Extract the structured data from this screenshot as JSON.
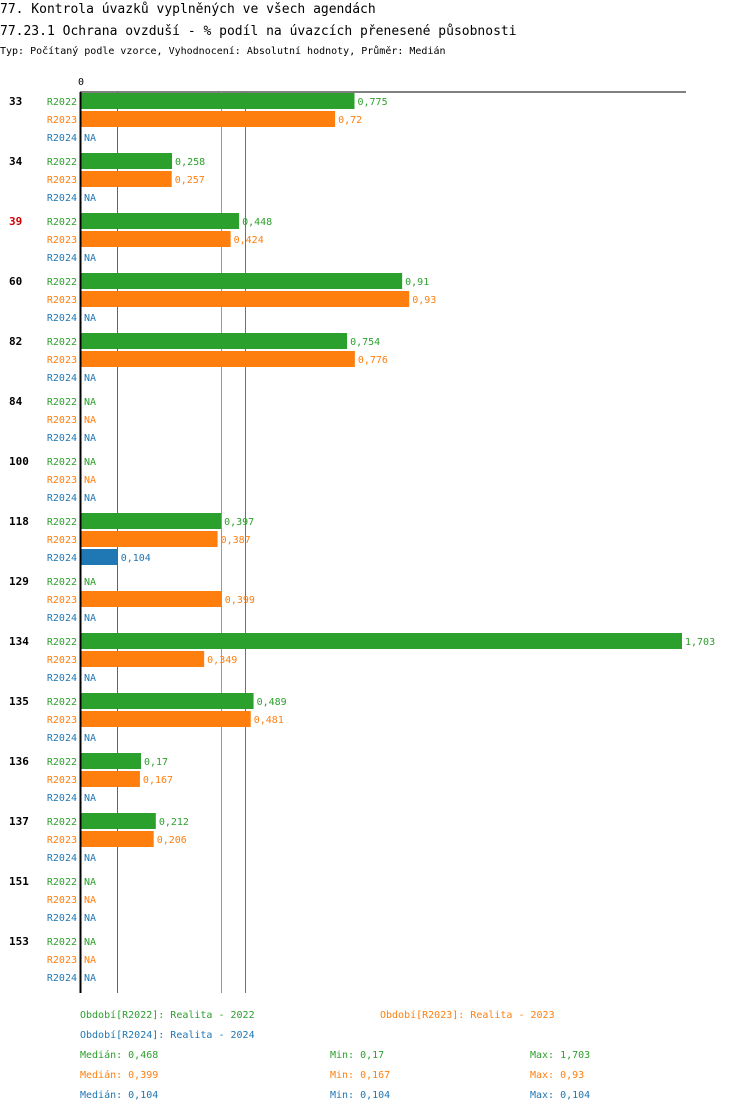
{
  "chart_data": {
    "type": "bar",
    "orientation": "horizontal",
    "title": "77. Kontrola úvazků vyplněných ve všech agendách",
    "subtitle": "77.23.1 Ochrana ovzduší - % podíl na úvazcích přenesené působnosti",
    "description": "Typ: Počítaný podle vzorce, Vyhodnocení: Absolutní hodnoty, Průměr: Medián",
    "axis_zero_label": "0",
    "xlim": [
      0,
      1.703
    ],
    "na_label": "NA",
    "colors": {
      "R2022": "#2ca02c",
      "R2023": "#ff7f0e",
      "R2024": "#1f77b4"
    },
    "highlight_color": "#cc0000",
    "series_names": [
      "R2022",
      "R2023",
      "R2024"
    ],
    "categories": [
      {
        "label": "33",
        "highlight": false,
        "values": [
          0.775,
          0.72,
          null
        ],
        "labels": [
          "0,775",
          "0,72",
          "NA"
        ]
      },
      {
        "label": "34",
        "highlight": false,
        "values": [
          0.258,
          0.257,
          null
        ],
        "labels": [
          "0,258",
          "0,257",
          "NA"
        ]
      },
      {
        "label": "39",
        "highlight": true,
        "values": [
          0.448,
          0.424,
          null
        ],
        "labels": [
          "0,448",
          "0,424",
          "NA"
        ]
      },
      {
        "label": "60",
        "highlight": false,
        "values": [
          0.91,
          0.93,
          null
        ],
        "labels": [
          "0,91",
          "0,93",
          "NA"
        ]
      },
      {
        "label": "82",
        "highlight": false,
        "values": [
          0.754,
          0.776,
          null
        ],
        "labels": [
          "0,754",
          "0,776",
          "NA"
        ]
      },
      {
        "label": "84",
        "highlight": false,
        "values": [
          null,
          null,
          null
        ],
        "labels": [
          "NA",
          "NA",
          "NA"
        ]
      },
      {
        "label": "100",
        "highlight": false,
        "values": [
          null,
          null,
          null
        ],
        "labels": [
          "NA",
          "NA",
          "NA"
        ]
      },
      {
        "label": "118",
        "highlight": false,
        "values": [
          0.397,
          0.387,
          0.104
        ],
        "labels": [
          "0,397",
          "0,387",
          "0,104"
        ]
      },
      {
        "label": "129",
        "highlight": false,
        "values": [
          null,
          0.399,
          null
        ],
        "labels": [
          "NA",
          "0,399",
          "NA"
        ]
      },
      {
        "label": "134",
        "highlight": false,
        "values": [
          1.703,
          0.349,
          null
        ],
        "labels": [
          "1,703",
          "0,349",
          "NA"
        ]
      },
      {
        "label": "135",
        "highlight": false,
        "values": [
          0.489,
          0.481,
          null
        ],
        "labels": [
          "0,489",
          "0,481",
          "NA"
        ]
      },
      {
        "label": "136",
        "highlight": false,
        "values": [
          0.17,
          0.167,
          null
        ],
        "labels": [
          "0,17",
          "0,167",
          "NA"
        ]
      },
      {
        "label": "137",
        "highlight": false,
        "values": [
          0.212,
          0.206,
          null
        ],
        "labels": [
          "0,212",
          "0,206",
          "NA"
        ]
      },
      {
        "label": "151",
        "highlight": false,
        "values": [
          null,
          null,
          null
        ],
        "labels": [
          "NA",
          "NA",
          "NA"
        ]
      },
      {
        "label": "153",
        "highlight": false,
        "values": [
          null,
          null,
          null
        ],
        "labels": [
          "NA",
          "NA",
          "NA"
        ]
      }
    ],
    "reference_lines": [
      {
        "series": "R2022",
        "value": 0.468
      },
      {
        "series": "R2023",
        "value": 0.399
      },
      {
        "series": "R2024",
        "value": 0.104
      }
    ],
    "legend": [
      {
        "series": "R2022",
        "text": "Období[R2022]: Realita - 2022"
      },
      {
        "series": "R2023",
        "text": "Období[R2023]: Realita - 2023"
      },
      {
        "series": "R2024",
        "text": "Období[R2024]: Realita - 2024"
      }
    ],
    "stats": [
      {
        "series": "R2022",
        "median": "Medián: 0,468",
        "min": "Min: 0,17",
        "max": "Max: 1,703"
      },
      {
        "series": "R2023",
        "median": "Medián: 0,399",
        "min": "Min: 0,167",
        "max": "Max: 0,93"
      },
      {
        "series": "R2024",
        "median": "Medián: 0,104",
        "min": "Min: 0,104",
        "max": "Max: 0,104"
      }
    ]
  }
}
